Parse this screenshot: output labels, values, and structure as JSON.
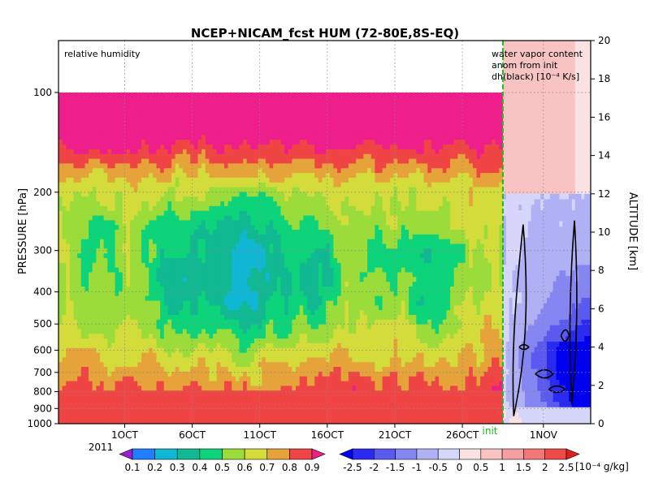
{
  "chart_data": {
    "type": "heatmap",
    "title": "NCEP+NICAM_fcst HUM (72-80E,8S-EQ)",
    "left_label": "relative humidity",
    "right_labels": [
      "water vapor content",
      "anom from init",
      "dh(black) [10⁻⁴ K/s]"
    ],
    "ylabel_left": "PRESSURE [hPa]",
    "ylabel_right": "ALTITUDE [km]",
    "pressure_ticks": [
      100,
      200,
      300,
      400,
      500,
      600,
      700,
      800,
      900,
      1000
    ],
    "altitude_ticks": [
      0,
      2,
      4,
      6,
      8,
      10,
      12,
      14,
      16,
      18,
      20
    ],
    "x_ticks": [
      {
        "label": "1OCT",
        "day": 1
      },
      {
        "label": "6OCT",
        "day": 6
      },
      {
        "label": "11OCT",
        "day": 11
      },
      {
        "label": "16OCT",
        "day": 16
      },
      {
        "label": "21OCT",
        "day": 21
      },
      {
        "label": "26OCT",
        "day": 26
      },
      {
        "label": "1NOV",
        "day": 32
      }
    ],
    "x_range_days": [
      -3.9,
      35.5
    ],
    "init_day": 29.0,
    "init_label": "init",
    "year_label": "2011",
    "grid": true,
    "rh_levels": [
      "0.1",
      "0.2",
      "0.3",
      "0.4",
      "0.5",
      "0.6",
      "0.7",
      "0.8",
      "0.9"
    ],
    "rh_colors": [
      "#9a1fd0",
      "#1f7fff",
      "#10b6d3",
      "#10b991",
      "#0dd37a",
      "#9bdc3b",
      "#d4dc3b",
      "#e5a33a",
      "#f04545",
      "#ee1e8a"
    ],
    "anom_levels": [
      "-2.5",
      "-2",
      "-1.5",
      "-1",
      "-0.5",
      "0",
      "0.5",
      "1",
      "1.5",
      "2",
      "2.5"
    ],
    "anom_colors": [
      "#0000ee",
      "#2b2bf0",
      "#5a5af0",
      "#8686f2",
      "#b0b0f5",
      "#d6d6fa",
      "#fae2e2",
      "#f7c3c3",
      "#f4a0a0",
      "#f27878",
      "#ee4a4a",
      "#e01e1e"
    ],
    "anom_units": "[10⁻⁴ g/kg]"
  }
}
